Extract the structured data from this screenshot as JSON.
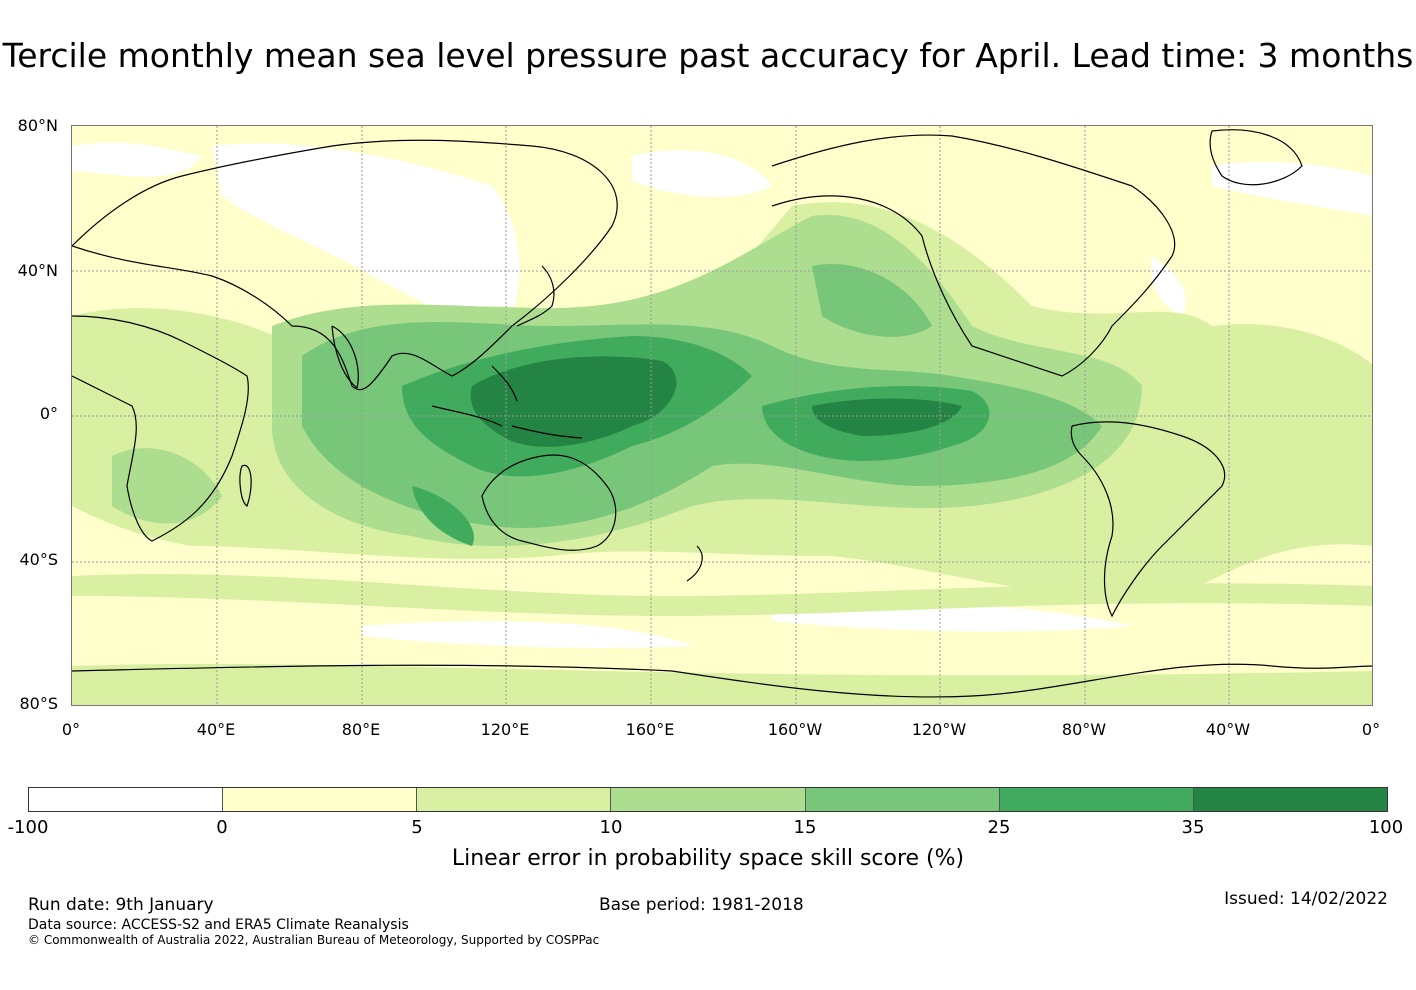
{
  "title": "Tercile monthly mean sea level pressure past accuracy for April. Lead time: 3 months",
  "map": {
    "lat_labels": [
      "80°N",
      "40°N",
      "0°",
      "40°S",
      "80°S"
    ],
    "lon_labels": [
      "0°",
      "40°E",
      "80°E",
      "120°E",
      "160°E",
      "160°W",
      "120°W",
      "80°W",
      "40°W",
      "0°"
    ]
  },
  "colorbar": {
    "ticks": [
      "-100",
      "0",
      "5",
      "10",
      "15",
      "25",
      "35",
      "100"
    ],
    "colors": [
      "#ffffff",
      "#ffffcc",
      "#d9f0a3",
      "#addd8e",
      "#78c679",
      "#41ab5d",
      "#238443"
    ],
    "label": "Linear error in probability space skill score (%)"
  },
  "footer": {
    "run_date": "Run date: 9th January",
    "base_period": "Base period: 1981-2018",
    "issued": "Issued: 14/02/2022",
    "data_source": "Data source: ACCESS-S2 and ERA5 Climate Reanalysis",
    "copyright": "© Commonwealth of Australia 2022, Australian Bureau of Meteorology, Supported by COSPPac"
  }
}
